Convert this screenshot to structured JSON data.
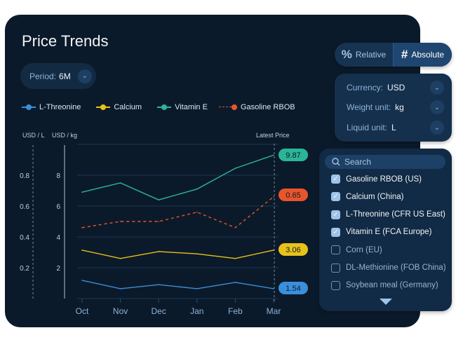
{
  "title": "Price Trends",
  "period": {
    "label": "Period:",
    "value": "6M"
  },
  "legend": [
    {
      "name": "L-Threonine",
      "color": "#3a8fdc",
      "dashed": false
    },
    {
      "name": "Calcium",
      "color": "#e8c21a",
      "dashed": false
    },
    {
      "name": "Vitamin E",
      "color": "#2bb597",
      "dashed": false
    },
    {
      "name": "Gasoline RBOB",
      "color": "#e9552a",
      "dashed": true
    }
  ],
  "toggle": {
    "relative": "Relative",
    "absolute": "Absolute",
    "selected": "Absolute"
  },
  "units": [
    {
      "label": "Currency:",
      "value": "USD"
    },
    {
      "label": "Weight unit:",
      "value": "kg"
    },
    {
      "label": "Liquid unit:",
      "value": "L"
    }
  ],
  "search": {
    "placeholder": "Search"
  },
  "commodities": [
    {
      "name": "Gasoline RBOB (US)",
      "checked": true
    },
    {
      "name": "Calcium (China)",
      "checked": true
    },
    {
      "name": "L-Threonine (CFR US East)",
      "checked": true
    },
    {
      "name": "Vitamin E (FCA Europe)",
      "checked": true
    },
    {
      "name": "Corn (EU)",
      "checked": false
    },
    {
      "name": "DL-Methionine (FOB China)",
      "checked": false
    },
    {
      "name": "Soybean meal (Germany)",
      "checked": false
    }
  ],
  "chart_data": {
    "type": "line",
    "categories": [
      "Oct",
      "Nov",
      "Dec",
      "Jan",
      "Feb",
      "Mar"
    ],
    "left_axis": {
      "label": "USD / L",
      "ticks": [
        "0.8",
        "0.6",
        "0.4",
        "0.2"
      ],
      "tick_values": [
        0.8,
        0.6,
        0.4,
        0.2
      ],
      "range": [
        0,
        1.0
      ]
    },
    "right_axis": {
      "label": "USD / kg",
      "ticks": [
        "8",
        "6",
        "4",
        "2"
      ],
      "tick_values": [
        8,
        6,
        4,
        2
      ],
      "range": [
        0,
        10
      ]
    },
    "latest_label": "Latest Price",
    "series": [
      {
        "name": "L-Threonine",
        "axis": "kg",
        "values": [
          1.18,
          0.64,
          0.9,
          0.64,
          1.05,
          0.64
        ],
        "latest": "1.54",
        "color": "#3a8fdc",
        "dashed": false
      },
      {
        "name": "Calcium",
        "axis": "kg",
        "values": [
          3.14,
          2.6,
          3.05,
          2.9,
          2.6,
          3.14
        ],
        "latest": "3.06",
        "color": "#e8c21a",
        "dashed": false
      },
      {
        "name": "Vitamin E",
        "axis": "kg",
        "values": [
          6.9,
          7.5,
          6.4,
          7.1,
          8.45,
          9.3
        ],
        "latest": "9.87",
        "color": "#2bb597",
        "dashed": false
      },
      {
        "name": "Gasoline RBOB",
        "axis": "L",
        "values": [
          0.46,
          0.5,
          0.5,
          0.56,
          0.46,
          0.66
        ],
        "latest": "0.65",
        "color": "#e9552a",
        "dashed": true
      }
    ]
  }
}
